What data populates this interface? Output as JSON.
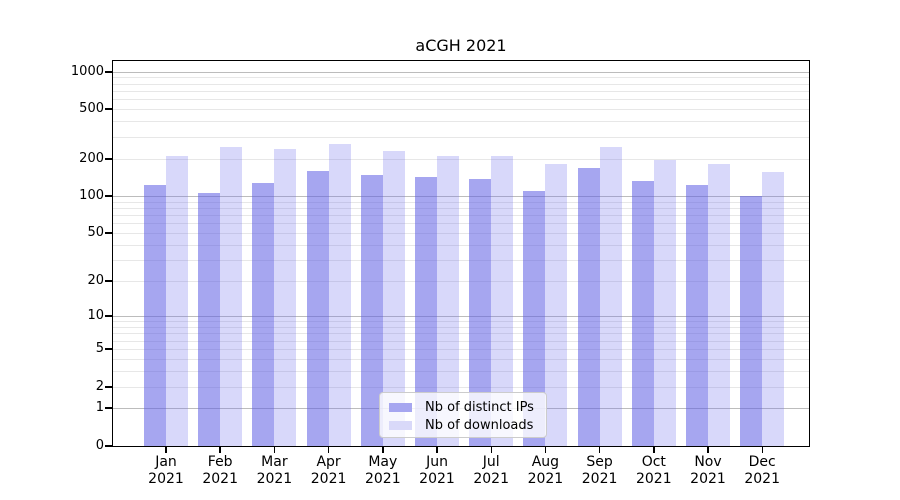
{
  "title": "aCGH 2021",
  "chart_data": {
    "type": "bar",
    "title": "aCGH 2021",
    "categories": [
      "Jan",
      "Feb",
      "Mar",
      "Apr",
      "May",
      "Jun",
      "Jul",
      "Aug",
      "Sep",
      "Oct",
      "Nov",
      "Dec"
    ],
    "category_year": "2021",
    "series": [
      {
        "name": "Nb of distinct IPs",
        "values": [
          122,
          105,
          128,
          160,
          147,
          142,
          136,
          110,
          167,
          133,
          122,
          100
        ],
        "color": "#a6a6f0",
        "fill_rgba": "rgba(97,97,228,0.56)"
      },
      {
        "name": "Nb of downloads",
        "values": [
          212,
          248,
          238,
          265,
          230,
          210,
          212,
          183,
          248,
          197,
          183,
          155
        ],
        "color": "#d9d9f9",
        "fill_rgba": "rgba(110,110,235,0.27)"
      }
    ],
    "yscale": "log1p",
    "y_ticks": [
      0,
      1,
      2,
      5,
      10,
      20,
      50,
      100,
      200,
      500,
      1000
    ],
    "ylim": [
      0,
      1240
    ],
    "grid": "horizontal-major-and-minor",
    "legend_position": "bottom-center",
    "colors": {
      "major_grid": "#bcbcbc",
      "minor_grid": "#e7e7e7",
      "spine": "#000000",
      "text": "#000000",
      "legend_border": "#cccccc",
      "legend_bg": "rgba(255,255,255,0.8)"
    }
  }
}
